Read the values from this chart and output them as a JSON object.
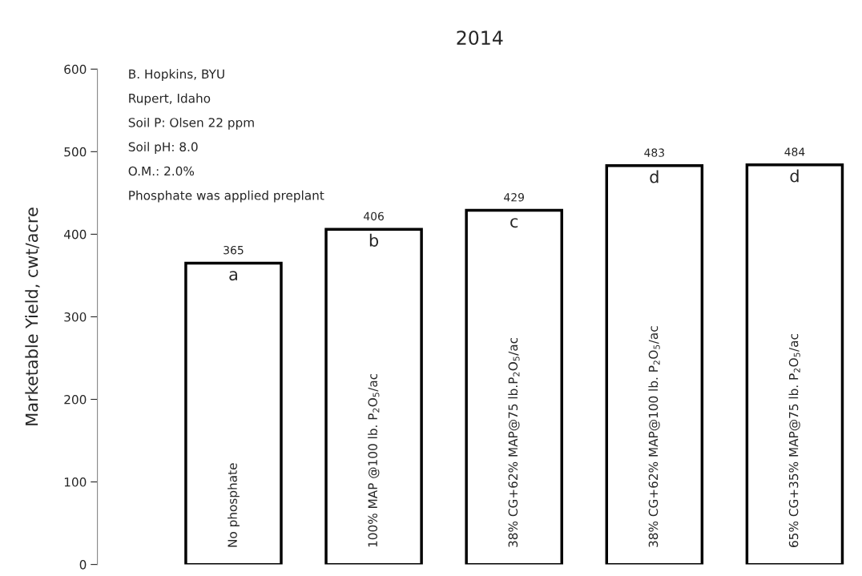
{
  "chart_data": {
    "type": "bar",
    "title": "2014",
    "ylabel": "Marketable Yield, cwt/acre",
    "categories": [
      "No phosphate",
      "100% MAP @100 lb. P$_{2}$O$_{5}$/ac",
      "38% CG+62% MAP@75 lb.P$_{2}$O$_{5}$/ac",
      "38% CG+62% MAP@100 lb. P$_{2}$O$_{5}$/ac",
      "65% CG+35% MAP@75 lb. P$_{2}$O$_{5}$/ac"
    ],
    "values": [
      365,
      406,
      429,
      483,
      484
    ],
    "color": "#ffffff",
    "ylim": [
      0,
      600
    ],
    "yticks": [
      0,
      100,
      200,
      300,
      400,
      500,
      600
    ],
    "grid": false,
    "data_labels": true,
    "tick_labels": "y",
    "annotations": [
      "B. Hopkins, BYU",
      "Rupert, Idaho",
      "Soil P: Olsen 22 ppm",
      "Soil pH: 8.0",
      "O.M.: 2.0%",
      "Phosphate was applied preplant",
      {
        "text": "a",
        "x": "No phosphate",
        "y": 365
      },
      {
        "text": "b",
        "x": "100% MAP @100 lb. P$_{2}$O$_{5}$/ac",
        "y": 406
      },
      {
        "text": "c",
        "x": "38% CG+62% MAP@75 lb.P$_{2}$O$_{5}$/ac",
        "y": 429
      },
      {
        "text": "d",
        "x": "38% CG+62% MAP@100 lb. P$_{2}$O$_{5}$/ac",
        "y": 483
      },
      {
        "text": "d",
        "x": "65% CG+35% MAP@75 lb. P$_{2}$O$_{5}$/ac",
        "y": 484
      }
    ]
  }
}
